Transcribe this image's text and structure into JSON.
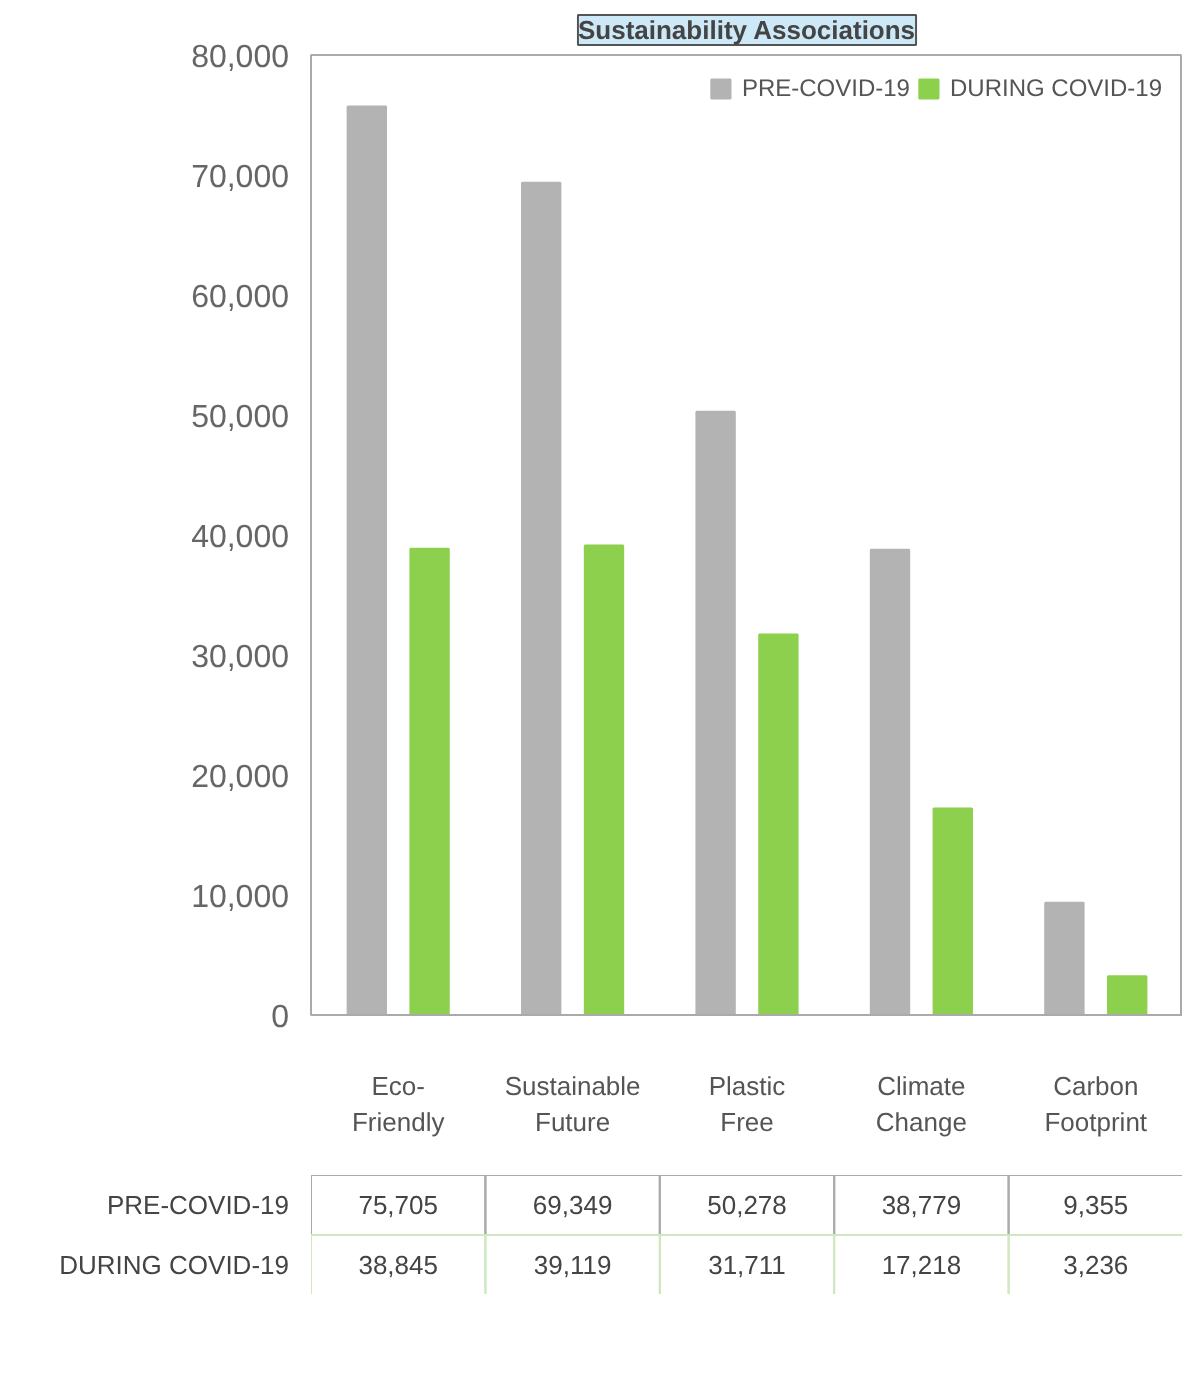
{
  "chart_data": {
    "type": "bar",
    "title": "Sustainability Associations",
    "categories": [
      "Eco-\nFriendly",
      "Sustainable\nFuture",
      "Plastic\nFree",
      "Climate\nChange",
      "Carbon\nFootprint"
    ],
    "series": [
      {
        "name": "PRE-COVID-19",
        "color": "#b3b3b3",
        "values": [
          75705,
          69349,
          50278,
          38779,
          9355
        ],
        "value_labels": [
          "75,705",
          "69,349",
          "50,278",
          "38,779",
          "9,355"
        ]
      },
      {
        "name": "DURING COVID-19",
        "color": "#8cd04d",
        "values": [
          38845,
          39119,
          31711,
          17218,
          3236
        ],
        "value_labels": [
          "38,845",
          "39,119",
          "31,711",
          "17,218",
          "3,236"
        ]
      }
    ],
    "ylim": [
      0,
      80000
    ],
    "yticks": [
      {
        "value": 0,
        "label": "0"
      },
      {
        "value": 10000,
        "label": "10,000"
      },
      {
        "value": 20000,
        "label": "20,000"
      },
      {
        "value": 30000,
        "label": "30,000"
      },
      {
        "value": 40000,
        "label": "40,000"
      },
      {
        "value": 50000,
        "label": "50,000"
      },
      {
        "value": 60000,
        "label": "60,000"
      },
      {
        "value": 70000,
        "label": "70,000"
      },
      {
        "value": 80000,
        "label": "80,000"
      }
    ],
    "grid": false,
    "legend": "top right"
  }
}
